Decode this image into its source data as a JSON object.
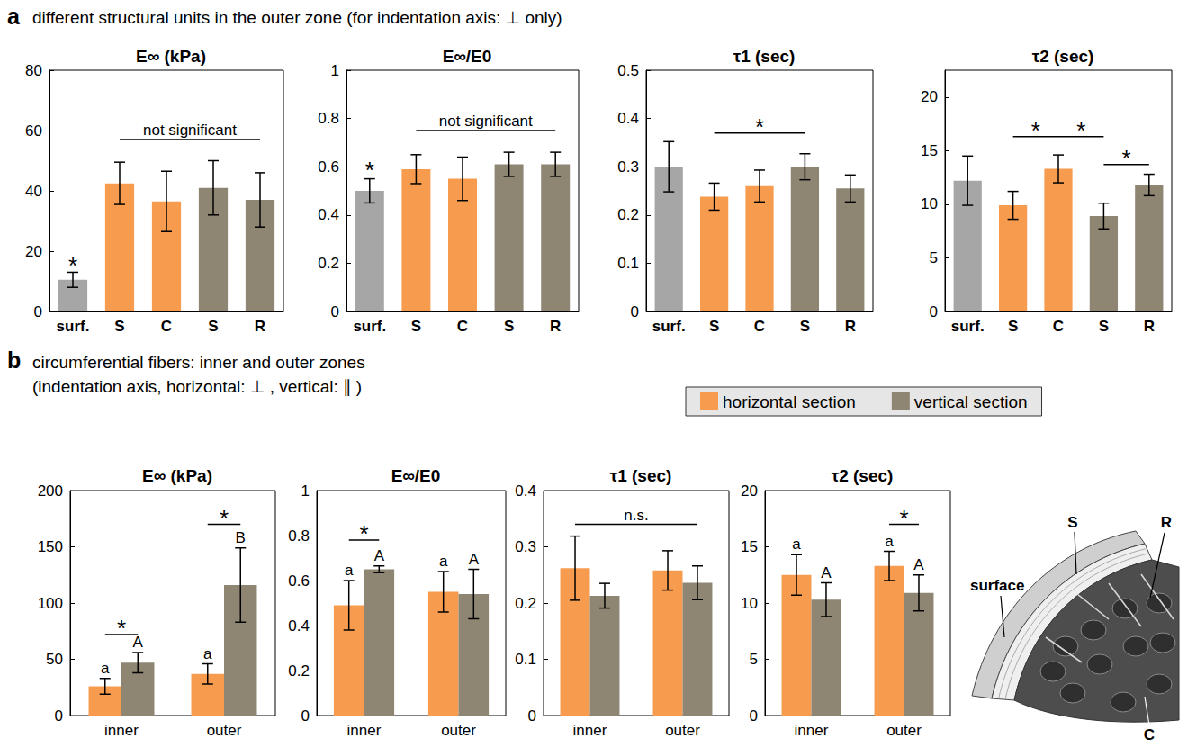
{
  "chart_data": [
    {
      "type": "bar",
      "title": "E∞ (kPa)",
      "categories": [
        "surf.",
        "S",
        "C",
        "S",
        "R"
      ],
      "values": [
        10.5,
        42.5,
        36.5,
        41,
        37
      ],
      "errors": [
        2.5,
        7,
        10,
        9,
        9
      ],
      "colors": [
        "#a6a6a6",
        "#f79c4f",
        "#f79c4f",
        "#8e8673",
        "#8e8673"
      ],
      "ylim": [
        0,
        80
      ],
      "yticks": [
        0,
        20,
        40,
        60,
        80
      ],
      "grid": false,
      "annotations": [
        {
          "text": "*",
          "x": 0,
          "y": 13
        },
        {
          "text": "not significant",
          "from": 1,
          "to": 4,
          "y": 57
        }
      ]
    },
    {
      "type": "bar",
      "title": "E∞/E0",
      "categories": [
        "surf.",
        "S",
        "C",
        "S",
        "R"
      ],
      "values": [
        0.5,
        0.59,
        0.55,
        0.61,
        0.61
      ],
      "errors": [
        0.05,
        0.06,
        0.09,
        0.05,
        0.05
      ],
      "colors": [
        "#a6a6a6",
        "#f79c4f",
        "#f79c4f",
        "#8e8673",
        "#8e8673"
      ],
      "ylim": [
        0,
        1
      ],
      "yticks": [
        0,
        0.2,
        0.4,
        0.6,
        0.8,
        1
      ],
      "grid": false,
      "annotations": [
        {
          "text": "*",
          "x": 0,
          "y": 0.56
        },
        {
          "text": "not significant",
          "from": 1,
          "to": 4,
          "y": 0.75
        }
      ]
    },
    {
      "type": "bar",
      "title": "τ1 (sec)",
      "categories": [
        "surf.",
        "S",
        "C",
        "S",
        "R"
      ],
      "values": [
        0.3,
        0.238,
        0.26,
        0.3,
        0.255
      ],
      "errors": [
        0.052,
        0.028,
        0.033,
        0.027,
        0.028
      ],
      "colors": [
        "#a6a6a6",
        "#f79c4f",
        "#f79c4f",
        "#8e8673",
        "#8e8673"
      ],
      "ylim": [
        0,
        0.5
      ],
      "yticks": [
        0,
        0.1,
        0.2,
        0.3,
        0.4,
        0.5
      ],
      "grid": false,
      "annotations": [
        {
          "text": "*",
          "from": 1,
          "to": 3,
          "y": 0.37
        }
      ]
    },
    {
      "type": "bar",
      "title": "τ2 (sec)",
      "categories": [
        "surf.",
        "S",
        "C",
        "S",
        "R"
      ],
      "values": [
        12.2,
        9.9,
        13.3,
        8.9,
        11.8
      ],
      "errors": [
        2.3,
        1.3,
        1.3,
        1.2,
        1.0
      ],
      "colors": [
        "#a6a6a6",
        "#f79c4f",
        "#f79c4f",
        "#8e8673",
        "#8e8673"
      ],
      "ylim": [
        0,
        22.5
      ],
      "yticks": [
        0,
        5,
        10,
        15,
        20
      ],
      "grid": false,
      "annotations": [
        {
          "text": "*",
          "from": 1,
          "to": 2,
          "y": 16.3
        },
        {
          "text": "*",
          "from": 2,
          "to": 3,
          "y": 16.3
        },
        {
          "text": "*",
          "from": 3,
          "to": 4,
          "y": 13.7
        }
      ]
    },
    {
      "type": "bar",
      "title": "E∞ (kPa)",
      "categories": [
        "inner",
        "outer"
      ],
      "series": [
        {
          "name": "horizontal section",
          "color": "#f79c4f",
          "values": [
            26,
            37
          ],
          "errors": [
            7,
            9
          ],
          "letters": [
            "a",
            "a"
          ]
        },
        {
          "name": "vertical section",
          "color": "#8e8673",
          "values": [
            47,
            116
          ],
          "errors": [
            9,
            33
          ],
          "letters": [
            "A",
            "B"
          ]
        }
      ],
      "ylim": [
        0,
        200
      ],
      "yticks": [
        0,
        50,
        100,
        150,
        200
      ],
      "grid": false,
      "legend": "top right",
      "annotations": [
        {
          "text": "*",
          "from": [
            0,
            0
          ],
          "to": [
            0,
            1
          ],
          "y": 72
        },
        {
          "text": "*",
          "from": [
            1,
            0
          ],
          "to": [
            1,
            1
          ],
          "y": 170
        }
      ]
    },
    {
      "type": "bar",
      "title": "E∞/E0",
      "categories": [
        "inner",
        "outer"
      ],
      "series": [
        {
          "name": "horizontal section",
          "color": "#f79c4f",
          "values": [
            0.49,
            0.55
          ],
          "errors": [
            0.11,
            0.09
          ],
          "letters": [
            "a",
            "a"
          ]
        },
        {
          "name": "vertical section",
          "color": "#8e8673",
          "values": [
            0.65,
            0.54
          ],
          "errors": [
            0.015,
            0.11
          ],
          "letters": [
            "A",
            "A"
          ]
        }
      ],
      "ylim": [
        0,
        1
      ],
      "yticks": [
        0,
        0.2,
        0.4,
        0.6,
        0.8,
        1
      ],
      "grid": false,
      "legend": "top right",
      "annotations": [
        {
          "text": "*",
          "from": [
            0,
            0
          ],
          "to": [
            0,
            1
          ],
          "y": 0.78
        }
      ]
    },
    {
      "type": "bar",
      "title": "τ1 (sec)",
      "categories": [
        "inner",
        "outer"
      ],
      "series": [
        {
          "name": "horizontal section",
          "color": "#f79c4f",
          "values": [
            0.262,
            0.258
          ],
          "errors": [
            0.057,
            0.035
          ]
        },
        {
          "name": "vertical section",
          "color": "#8e8673",
          "values": [
            0.213,
            0.236
          ],
          "errors": [
            0.022,
            0.03
          ]
        }
      ],
      "ylim": [
        0,
        0.4
      ],
      "yticks": [
        0,
        0.1,
        0.2,
        0.3,
        0.4
      ],
      "grid": false,
      "legend": "top right",
      "annotations": [
        {
          "text": "n.s.",
          "from": [
            0,
            0
          ],
          "to": [
            1,
            1
          ],
          "y": 0.34
        }
      ]
    },
    {
      "type": "bar",
      "title": "τ2 (sec)",
      "categories": [
        "inner",
        "outer"
      ],
      "series": [
        {
          "name": "horizontal section",
          "color": "#f79c4f",
          "values": [
            12.5,
            13.3
          ],
          "errors": [
            1.8,
            1.3
          ],
          "letters": [
            "a",
            "a"
          ]
        },
        {
          "name": "vertical section",
          "color": "#8e8673",
          "values": [
            10.3,
            10.9
          ],
          "errors": [
            1.5,
            1.6
          ],
          "letters": [
            "A",
            "A"
          ]
        }
      ],
      "ylim": [
        0,
        20
      ],
      "yticks": [
        0,
        5,
        10,
        15,
        20
      ],
      "grid": false,
      "legend": "top right",
      "annotations": [
        {
          "text": "*",
          "from": [
            1,
            0
          ],
          "to": [
            1,
            1
          ],
          "y": 17
        }
      ]
    }
  ],
  "panels": [
    {
      "letter": "a",
      "caption": [
        "different structural units in the outer zone (for indentation axis: ⊥ only)"
      ]
    },
    {
      "letter": "b",
      "caption": [
        "circumferential fibers: inner and outer zones",
        "(indentation axis, horizontal: ⊥ , vertical: ∥ )"
      ]
    }
  ],
  "illustration": {
    "labels": [
      "surface",
      "S",
      "R",
      "C"
    ]
  }
}
